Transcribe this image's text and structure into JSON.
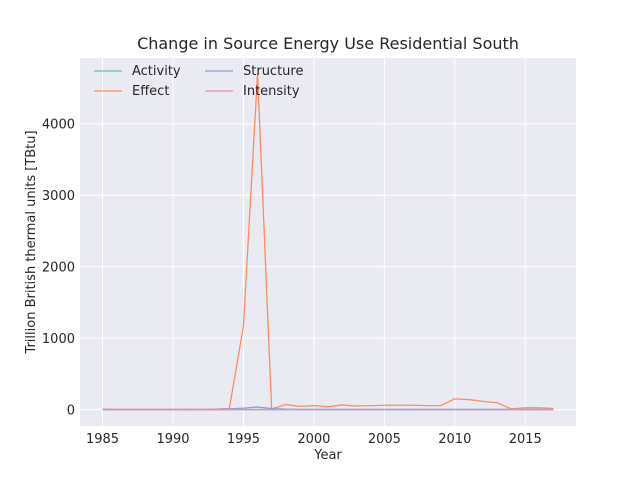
{
  "chart_data": {
    "type": "line",
    "title": "Change in Source Energy Use Residential South",
    "xlabel": "Year",
    "ylabel": "Trillion British thermal units [TBtu]",
    "xlim": [
      1983.4,
      2018.6
    ],
    "ylim": [
      -230,
      4920
    ],
    "x_ticks": [
      1985,
      1990,
      1995,
      2000,
      2005,
      2010,
      2015
    ],
    "x_tick_labels": [
      "1985",
      "1990",
      "1995",
      "2000",
      "2005",
      "2010",
      "2015"
    ],
    "y_ticks": [
      0,
      1000,
      2000,
      3000,
      4000
    ],
    "y_tick_labels": [
      "0",
      "1000",
      "2000",
      "3000",
      "4000"
    ],
    "grid": true,
    "legend_position": "upper-left",
    "x": [
      1985,
      1986,
      1987,
      1988,
      1989,
      1990,
      1991,
      1992,
      1993,
      1994,
      1995,
      1996,
      1997,
      1998,
      1999,
      2000,
      2001,
      2002,
      2003,
      2004,
      2005,
      2006,
      2007,
      2008,
      2009,
      2010,
      2011,
      2012,
      2013,
      2014,
      2015,
      2016,
      2017
    ],
    "series": [
      {
        "name": "Activity",
        "color": "#66c2a5",
        "values": [
          0,
          0,
          0,
          0,
          0,
          0,
          0,
          0,
          0,
          0,
          0,
          0,
          0,
          0,
          0,
          0,
          0,
          0,
          0,
          0,
          0,
          0,
          0,
          0,
          0,
          0,
          0,
          0,
          0,
          0,
          0,
          0,
          0
        ]
      },
      {
        "name": "Effect",
        "color": "#fc8d62",
        "values": [
          5,
          3,
          2,
          2,
          2,
          2,
          4,
          3,
          5,
          15,
          1170,
          4700,
          10,
          70,
          45,
          55,
          40,
          65,
          50,
          55,
          60,
          60,
          60,
          55,
          55,
          150,
          140,
          115,
          95,
          10,
          25,
          25,
          15
        ]
      },
      {
        "name": "Structure",
        "color": "#8da0cb",
        "values": [
          0,
          0,
          0,
          0,
          0,
          0,
          0,
          0,
          0,
          10,
          20,
          35,
          15,
          5,
          3,
          2,
          2,
          2,
          2,
          2,
          2,
          2,
          2,
          2,
          2,
          2,
          2,
          2,
          2,
          2,
          2,
          2,
          2
        ]
      },
      {
        "name": "Intensity",
        "color": "#e78ac3",
        "values": [
          0,
          0,
          0,
          0,
          0,
          0,
          0,
          0,
          0,
          0,
          0,
          0,
          0,
          0,
          0,
          0,
          0,
          0,
          0,
          0,
          0,
          0,
          0,
          0,
          0,
          0,
          0,
          0,
          0,
          0,
          0,
          0,
          0
        ]
      }
    ]
  },
  "colors": {
    "plot_background": "#eaeaf2",
    "grid": "#ffffff",
    "text": "#262626"
  }
}
